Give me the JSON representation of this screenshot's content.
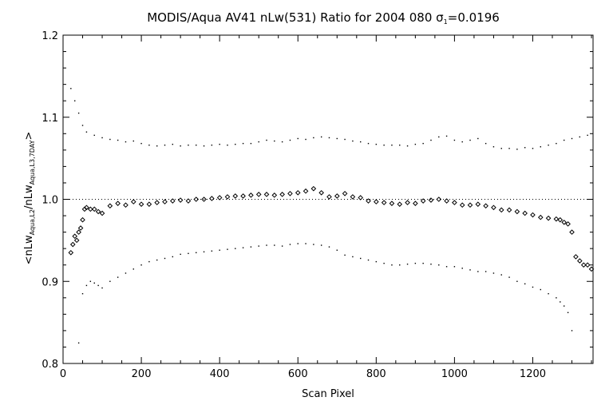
{
  "chart_data": {
    "type": "scatter",
    "title": {
      "prefix": "MODIS/Aqua AV41 nLw(531) Ratio for 2004 080 ",
      "sigma_symbol": "σ",
      "sigma_subscript": "1",
      "sigma_value": "=0.0196"
    },
    "xlabel": "Scan Pixel",
    "ylabel": {
      "open": "<nLw",
      "sub1": "Aqua,L2",
      "mid": "/nLw",
      "sub2": "Aqua,L3,7DAY",
      "close": ">"
    },
    "xlim": [
      0,
      1354
    ],
    "ylim": [
      0.8,
      1.2
    ],
    "x_ticks": [
      0,
      200,
      400,
      600,
      800,
      1000,
      1200
    ],
    "y_ticks": [
      0.8,
      0.9,
      1.0,
      1.1,
      1.2
    ],
    "x_tick_labels": [
      "0",
      "200",
      "400",
      "600",
      "800",
      "1000",
      "1200"
    ],
    "y_tick_labels": [
      "0.8",
      "0.9",
      "1.0",
      "1.1",
      "1.2"
    ],
    "reference_line": 1.0,
    "grid": false,
    "series": [
      {
        "role": "mean",
        "marker": "diamond",
        "color": "#000000",
        "x": [
          20,
          25,
          30,
          35,
          40,
          45,
          50,
          55,
          60,
          70,
          80,
          90,
          100,
          120,
          140,
          160,
          180,
          200,
          220,
          240,
          260,
          280,
          300,
          320,
          340,
          360,
          380,
          400,
          420,
          440,
          460,
          480,
          500,
          520,
          540,
          560,
          580,
          600,
          620,
          640,
          660,
          680,
          700,
          720,
          740,
          760,
          780,
          800,
          820,
          840,
          860,
          880,
          900,
          920,
          940,
          960,
          980,
          1000,
          1020,
          1040,
          1060,
          1080,
          1100,
          1120,
          1140,
          1160,
          1180,
          1200,
          1220,
          1240,
          1260,
          1270,
          1280,
          1290,
          1300,
          1310,
          1320,
          1330,
          1340,
          1350
        ],
        "y": [
          0.935,
          0.945,
          0.955,
          0.95,
          0.96,
          0.965,
          0.975,
          0.988,
          0.99,
          0.988,
          0.988,
          0.985,
          0.983,
          0.992,
          0.995,
          0.993,
          0.997,
          0.994,
          0.994,
          0.996,
          0.997,
          0.998,
          0.999,
          0.998,
          1.0,
          1.0,
          1.001,
          1.002,
          1.003,
          1.004,
          1.004,
          1.005,
          1.006,
          1.006,
          1.005,
          1.006,
          1.007,
          1.008,
          1.01,
          1.013,
          1.008,
          1.003,
          1.004,
          1.007,
          1.003,
          1.002,
          0.998,
          0.997,
          0.996,
          0.995,
          0.994,
          0.996,
          0.995,
          0.998,
          0.999,
          1.0,
          0.998,
          0.996,
          0.993,
          0.993,
          0.994,
          0.992,
          0.99,
          0.987,
          0.987,
          0.985,
          0.983,
          0.981,
          0.978,
          0.977,
          0.976,
          0.975,
          0.972,
          0.97,
          0.96,
          0.93,
          0.925,
          0.92,
          0.92,
          0.915
        ]
      },
      {
        "role": "upper",
        "marker": "dot",
        "color": "#000000",
        "x": [
          20,
          30,
          40,
          50,
          60,
          80,
          100,
          120,
          140,
          160,
          180,
          200,
          220,
          240,
          260,
          280,
          300,
          320,
          340,
          360,
          380,
          400,
          420,
          440,
          460,
          480,
          500,
          520,
          540,
          560,
          580,
          600,
          620,
          640,
          660,
          680,
          700,
          720,
          740,
          760,
          780,
          800,
          820,
          840,
          860,
          880,
          900,
          920,
          940,
          960,
          980,
          1000,
          1020,
          1040,
          1060,
          1080,
          1100,
          1120,
          1140,
          1160,
          1180,
          1200,
          1220,
          1240,
          1260,
          1280,
          1300,
          1320,
          1340
        ],
        "y": [
          1.135,
          1.12,
          1.105,
          1.09,
          1.082,
          1.078,
          1.075,
          1.073,
          1.072,
          1.07,
          1.071,
          1.068,
          1.066,
          1.065,
          1.066,
          1.067,
          1.065,
          1.066,
          1.066,
          1.065,
          1.066,
          1.067,
          1.066,
          1.067,
          1.068,
          1.068,
          1.07,
          1.072,
          1.071,
          1.07,
          1.072,
          1.074,
          1.073,
          1.075,
          1.076,
          1.075,
          1.074,
          1.073,
          1.071,
          1.07,
          1.068,
          1.067,
          1.066,
          1.066,
          1.066,
          1.065,
          1.067,
          1.068,
          1.072,
          1.076,
          1.077,
          1.072,
          1.07,
          1.072,
          1.074,
          1.068,
          1.064,
          1.062,
          1.062,
          1.061,
          1.063,
          1.062,
          1.064,
          1.066,
          1.068,
          1.072,
          1.074,
          1.076,
          1.078
        ]
      },
      {
        "role": "lower",
        "marker": "dot",
        "color": "#000000",
        "x": [
          40,
          50,
          60,
          70,
          80,
          90,
          100,
          120,
          140,
          160,
          180,
          200,
          220,
          240,
          260,
          280,
          300,
          320,
          340,
          360,
          380,
          400,
          420,
          440,
          460,
          480,
          500,
          520,
          540,
          560,
          580,
          600,
          620,
          640,
          660,
          680,
          700,
          720,
          740,
          760,
          780,
          800,
          820,
          840,
          860,
          880,
          900,
          920,
          940,
          960,
          980,
          1000,
          1020,
          1040,
          1060,
          1080,
          1100,
          1120,
          1140,
          1160,
          1180,
          1200,
          1220,
          1240,
          1260,
          1270,
          1280,
          1290,
          1300
        ],
        "y": [
          0.825,
          0.885,
          0.895,
          0.9,
          0.898,
          0.895,
          0.892,
          0.9,
          0.905,
          0.91,
          0.915,
          0.92,
          0.924,
          0.926,
          0.928,
          0.93,
          0.933,
          0.934,
          0.935,
          0.936,
          0.937,
          0.938,
          0.939,
          0.94,
          0.941,
          0.942,
          0.943,
          0.944,
          0.944,
          0.943,
          0.945,
          0.946,
          0.946,
          0.945,
          0.944,
          0.942,
          0.938,
          0.932,
          0.93,
          0.928,
          0.926,
          0.924,
          0.922,
          0.92,
          0.92,
          0.921,
          0.922,
          0.922,
          0.921,
          0.92,
          0.918,
          0.918,
          0.916,
          0.914,
          0.912,
          0.912,
          0.91,
          0.908,
          0.905,
          0.9,
          0.897,
          0.893,
          0.89,
          0.885,
          0.88,
          0.875,
          0.87,
          0.862,
          0.84
        ]
      }
    ]
  }
}
